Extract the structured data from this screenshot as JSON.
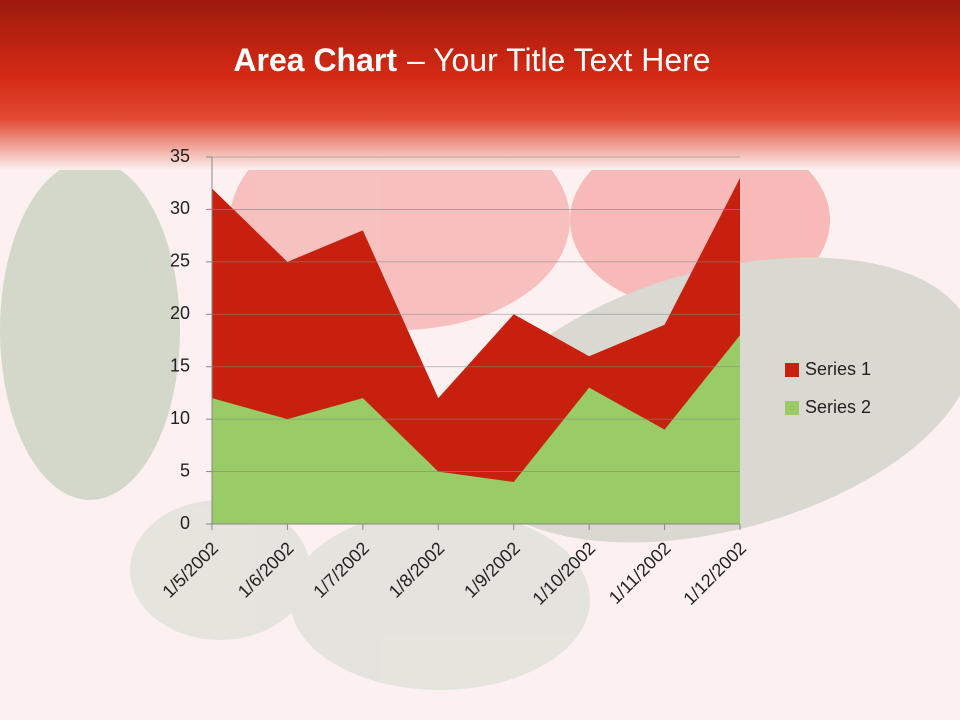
{
  "chart_data": {
    "type": "area",
    "title": {
      "bold": "Area Chart",
      "rest": "– Your Title Text Here"
    },
    "categories": [
      "1/5/2002",
      "1/6/2002",
      "1/7/2002",
      "1/8/2002",
      "1/9/2002",
      "1/10/2002",
      "1/11/2002",
      "1/12/2002"
    ],
    "series": [
      {
        "name": "Series 1",
        "color": "#c8200e",
        "values": [
          32,
          25,
          28,
          12,
          20,
          16,
          19,
          33
        ]
      },
      {
        "name": "Series 2",
        "color": "#99cc66",
        "values": [
          12,
          10,
          12,
          5,
          4,
          13,
          9,
          18
        ]
      }
    ],
    "ylim": [
      0,
      35
    ],
    "yticks": [
      0,
      5,
      10,
      15,
      20,
      25,
      30,
      35
    ],
    "grid": true,
    "legend": "right"
  }
}
